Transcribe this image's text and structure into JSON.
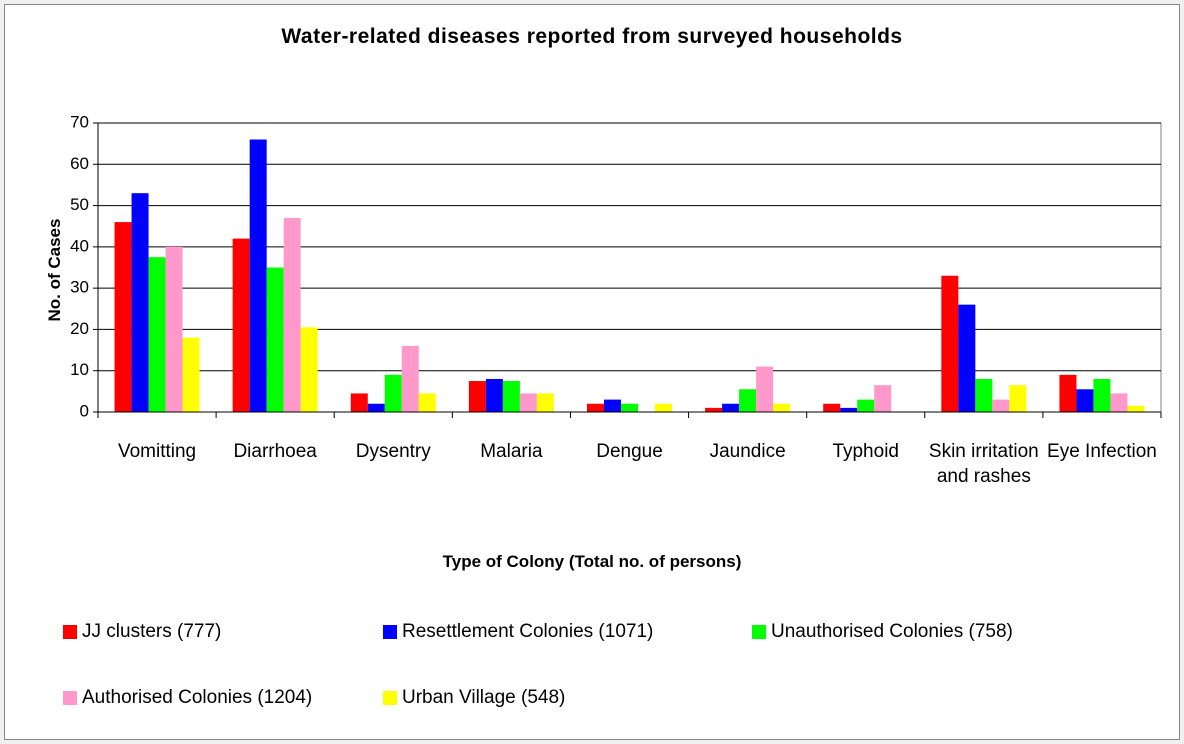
{
  "chart_data": {
    "type": "bar",
    "title": "Water-related diseases reported from surveyed households",
    "xlabel": "Type of Colony (Total no. of persons)",
    "ylabel": "No. of Cases",
    "categories": [
      "Vomitting",
      "Diarrhoea",
      "Dysentry",
      "Malaria",
      "Dengue",
      "Jaundice",
      "Typhoid",
      "Skin irritation and rashes",
      "Eye Infection"
    ],
    "series": [
      {
        "name": "JJ clusters (777)",
        "color": "#ff0000",
        "values": [
          46,
          42,
          4.5,
          7.5,
          2,
          1,
          2,
          33,
          9
        ]
      },
      {
        "name": "Resettlement Colonies (1071)",
        "color": "#0000ff",
        "values": [
          53,
          66,
          2,
          8,
          3,
          2,
          1,
          26,
          5.5
        ]
      },
      {
        "name": "Unauthorised Colonies (758)",
        "color": "#00ff00",
        "values": [
          37.5,
          35,
          9,
          7.5,
          2,
          5.5,
          3,
          8,
          8
        ]
      },
      {
        "name": "Authorised Colonies (1204)",
        "color": "#ff99cc",
        "values": [
          40,
          47,
          16,
          4.5,
          0,
          11,
          6.5,
          3,
          4.5
        ]
      },
      {
        "name": "Urban Village (548)",
        "color": "#ffff00",
        "values": [
          18,
          20.5,
          4.5,
          4.5,
          2,
          2,
          0,
          6.5,
          1.5
        ]
      }
    ],
    "ylim": [
      0,
      70
    ],
    "yticks": [
      0,
      10,
      20,
      30,
      40,
      50,
      60,
      70
    ],
    "grid": true
  }
}
